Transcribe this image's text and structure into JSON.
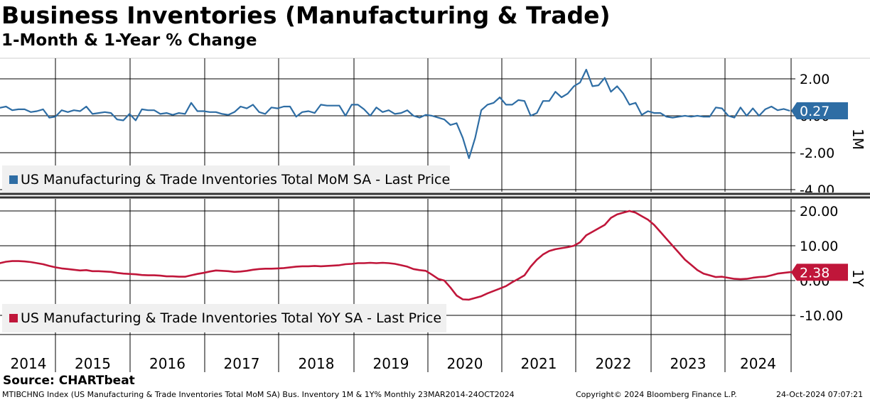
{
  "title": "Business Inventories (Manufacturing & Trade)",
  "subtitle": "1-Month & 1-Year % Change",
  "source": "Source: CHARTbeat",
  "footer": {
    "description": "MTIBCHNG Index (US Manufacturing & Trade Inventories Total MoM SA) Bus. Inventory 1M & 1Y%  Monthly 23MAR2014-24OCT2024",
    "copyright": "Copyright© 2024 Bloomberg Finance L.P.",
    "timestamp": "24-Oct-2024 07:07:21"
  },
  "colors": {
    "mom": "#2e6da4",
    "yoy": "#c0163a",
    "legend_bg": "#f0f0f0"
  },
  "chart_data": [
    {
      "type": "line",
      "panel": "top",
      "axis_label": "1M",
      "series_name": "US Manufacturing & Trade Inventories Total MoM SA - Last Price",
      "last_value_label": "0.27",
      "ylim": [
        -4.5,
        3.0
      ],
      "yticks": [
        2.0,
        0.0,
        -2.0,
        -4.0
      ],
      "ytick_labels": [
        "2.00",
        "0.00",
        "-2.00",
        "-4.00"
      ],
      "years": [
        "2014",
        "2015",
        "2016",
        "2017",
        "2018",
        "2019",
        "2020",
        "2021",
        "2022",
        "2023",
        "2024"
      ],
      "start": "2014-03",
      "values": [
        0.45,
        0.43,
        0.5,
        0.3,
        0.35,
        0.35,
        0.2,
        0.25,
        0.35,
        -0.1,
        -0.05,
        0.3,
        0.2,
        0.3,
        0.25,
        0.5,
        0.1,
        0.15,
        0.2,
        0.15,
        -0.2,
        -0.25,
        0.1,
        -0.25,
        0.35,
        0.3,
        0.3,
        0.1,
        0.15,
        0.05,
        0.15,
        0.1,
        0.7,
        0.25,
        0.25,
        0.2,
        0.2,
        0.1,
        0.05,
        0.2,
        0.5,
        0.4,
        0.6,
        0.2,
        0.1,
        0.45,
        0.4,
        0.5,
        0.5,
        -0.05,
        0.2,
        0.25,
        0.15,
        0.6,
        0.55,
        0.55,
        0.55,
        0.0,
        0.6,
        0.6,
        0.35,
        0.0,
        0.45,
        0.2,
        0.3,
        0.1,
        0.15,
        0.3,
        0.0,
        -0.1,
        0.05,
        0.0,
        -0.1,
        -0.2,
        -0.5,
        -0.4,
        -1.2,
        -2.3,
        -1.2,
        0.3,
        0.6,
        0.7,
        1.0,
        0.6,
        0.6,
        0.85,
        0.8,
        0.0,
        0.15,
        0.8,
        0.8,
        1.3,
        1.0,
        1.2,
        1.6,
        1.8,
        2.5,
        1.6,
        1.65,
        2.05,
        1.3,
        1.6,
        1.2,
        0.6,
        0.7,
        0.05,
        0.25,
        0.15,
        0.15,
        -0.05,
        -0.1,
        -0.05,
        0.0,
        -0.05,
        0.0,
        -0.05,
        -0.05,
        0.45,
        0.4,
        0.0,
        -0.1,
        0.45,
        0.0,
        0.4,
        0.0,
        0.35,
        0.5,
        0.3,
        0.37,
        0.27
      ]
    },
    {
      "type": "line",
      "panel": "bottom",
      "axis_label": "1Y",
      "series_name": "US Manufacturing & Trade Inventories Total YoY SA - Last Price",
      "last_value_label": "2.38",
      "ylim": [
        -16.0,
        24.0
      ],
      "yticks": [
        20.0,
        10.0,
        0.0,
        -10.0
      ],
      "ytick_labels": [
        "20.00",
        "10.00",
        "0.00",
        "-10.00"
      ],
      "start": "2014-03",
      "values": [
        5.0,
        5.0,
        5.4,
        5.6,
        5.6,
        5.5,
        5.3,
        5.0,
        4.7,
        4.2,
        3.8,
        3.5,
        3.3,
        3.1,
        2.9,
        3.0,
        2.7,
        2.7,
        2.6,
        2.5,
        2.2,
        2.0,
        1.9,
        1.8,
        1.6,
        1.5,
        1.5,
        1.4,
        1.2,
        1.2,
        1.1,
        1.1,
        1.5,
        1.9,
        2.2,
        2.6,
        2.9,
        2.8,
        2.7,
        2.5,
        2.6,
        2.8,
        3.1,
        3.3,
        3.4,
        3.4,
        3.5,
        3.6,
        3.8,
        4.0,
        4.1,
        4.1,
        4.2,
        4.1,
        4.2,
        4.3,
        4.4,
        4.7,
        4.8,
        5.0,
        5.0,
        5.1,
        5.0,
        5.1,
        5.0,
        4.8,
        4.4,
        4.0,
        3.3,
        3.0,
        2.8,
        1.7,
        0.5,
        0.0,
        -2.0,
        -4.3,
        -5.4,
        -5.5,
        -5.0,
        -4.5,
        -3.7,
        -3.0,
        -2.3,
        -1.6,
        -0.5,
        0.5,
        1.5,
        4.0,
        6.0,
        7.5,
        8.5,
        9.0,
        9.3,
        9.6,
        10.0,
        11.0,
        13.0,
        14.0,
        15.0,
        16.0,
        18.0,
        19.0,
        19.5,
        20.0,
        19.5,
        18.5,
        17.5,
        16.0,
        14.0,
        12.0,
        10.0,
        8.0,
        6.0,
        4.5,
        3.0,
        2.0,
        1.5,
        1.0,
        1.1,
        0.8,
        0.5,
        0.4,
        0.5,
        0.8,
        1.0,
        1.1,
        1.5,
        2.0,
        2.2,
        2.4,
        2.4,
        2.38
      ]
    }
  ]
}
